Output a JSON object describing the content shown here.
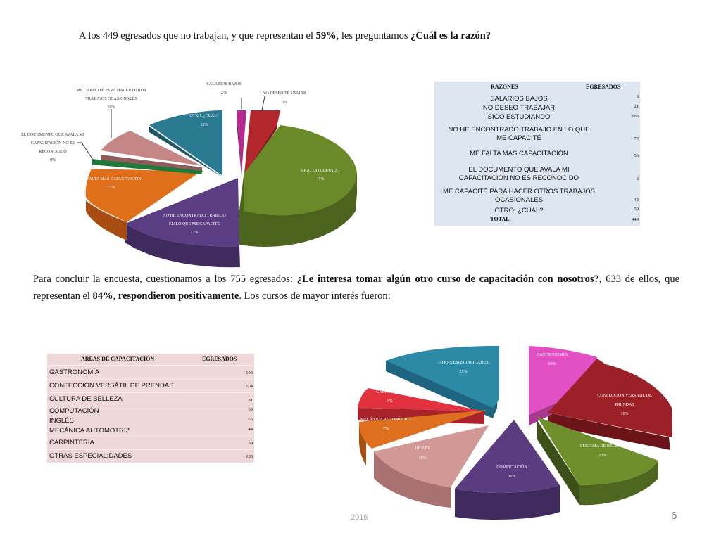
{
  "intro": {
    "part1": "A los 449 egresados que no trabajan, y que representan el ",
    "pct": "59%",
    "part2": ", les preguntamos ",
    "question": "¿Cuál es la razón?"
  },
  "chart1": {
    "labels": {
      "salarios_name": "SALARIOS BAJOS",
      "salarios_pct": "2%",
      "nodeseo_name": "NO DESEO TRABAJAR",
      "nodeseo_pct": "5%",
      "sigo_name": "SIGO ESTUDIANDO",
      "sigo_pct": "41%",
      "noenc_line1": "NO HE ENCONTRADO TRABAJO",
      "noenc_line2": "EN LO QUE ME CAPACITÉ",
      "noenc_pct": "17%",
      "falta_name": "FALTA MÁS CAPACITACIÓN",
      "falta_pct": "12%",
      "doc_line1": "EL DOCUMENTO QUE AVALA MI",
      "doc_line2": "CAPACITACIÓN NO ES",
      "doc_line3": "RECONOCIDO",
      "doc_pct": "0%",
      "mecap_line1": "ME CAPACITÉ PARA HACER OTROS",
      "mecap_line2": "TRABAJOS OCASIONALES",
      "mecap_pct": "10%",
      "otro_name": "OTRO: ¿CUÁL?",
      "otro_pct": "13%"
    }
  },
  "table1": {
    "header_reason": "RAZONES",
    "header_count": "EGRESADOS",
    "rows": [
      {
        "line1": "SALARIOS BAJOS",
        "line2": "",
        "value": "8"
      },
      {
        "line1": "NO DESEO TRABAJAR",
        "line2": "",
        "value": "21"
      },
      {
        "line1": "SIGO ESTUDIANDO",
        "line2": "",
        "value": "186"
      },
      {
        "line1": "NO HE ENCONTRADO TRABAJO EN LO QUE",
        "line2": "ME CAPACITÉ",
        "value": "74"
      },
      {
        "line1": "ME FALTA MÁS CAPACITACIÓN",
        "line2": "",
        "value": "56"
      },
      {
        "line1": "EL DOCUMENTO QUE AVALA MI",
        "line2": "CAPACITACIÓN NO ES RECONOCIDO",
        "value": "2"
      },
      {
        "line1": "ME CAPACITÉ PARA HACER OTROS TRABAJOS",
        "line2": "OCASIONALES",
        "value": "43"
      },
      {
        "line1": "OTRO: ¿CUÁL?",
        "line2": "",
        "value": "59"
      },
      {
        "line1": "TOTAL",
        "line2": "",
        "value": "449"
      }
    ]
  },
  "conclusion": {
    "part1": "Para concluir la encuesta, cuestionamos a los 755 egresados: ",
    "question": "¿Le interesa tomar algún otro curso de capacitación con nosotros?",
    "part2": ", 633 de ellos, que representan el ",
    "pct": "84%",
    "part3": ", ",
    "positive": "respondieron positivamente",
    "part4": ". Los cursos de mayor interés fueron:"
  },
  "table2": {
    "header_area": "ÁREAS DE CAPACITACIÓN",
    "header_count": "EGRESADOS",
    "rows": [
      {
        "label": "GASTRONOMÍA",
        "value": "103"
      },
      {
        "label": "CONFECCIÓN VERSÁTIL DE PRENDAS",
        "value": "104"
      },
      {
        "label": "CULTURA DE BELLEZA",
        "value": "81"
      },
      {
        "label": "COMPUTACIÓN",
        "value": "69"
      },
      {
        "label": "INGLÉS",
        "value": "63"
      },
      {
        "label": "MECÁNICA AUTOMOTRIZ",
        "value": "44"
      },
      {
        "label": "CARPINTERÍA",
        "value": "39"
      },
      {
        "label": "OTRAS ESPECIALIDADES",
        "value": "130"
      }
    ]
  },
  "chart2": {
    "labels": {
      "gastro_name": "GASTRONOMÍA",
      "gastro_pct": "16%",
      "confec_line1": "CONFECCIÓN VERSATIL DE",
      "confec_line2": "PRENDAS",
      "confec_pct": "16%",
      "cultura_name": "CULTORA DE BELLEZA",
      "cultura_pct": "13%",
      "comp_name": "COMPUTACIÓN",
      "comp_pct": "11%",
      "ingles_name": "INGLÉS",
      "ingles_pct": "10%",
      "mecanica_name": "MECÁNICA AUTOMOTRIZ",
      "mecanica_pct": "7%",
      "carp_name": "CARPINTERÍA",
      "carp_pct": "6%",
      "otras_name": "OTRAS ESPECIALIDADES",
      "otras_pct": "21%"
    }
  },
  "chart_data": [
    {
      "type": "pie",
      "categories": [
        "SALARIOS BAJOS",
        "NO DESEO TRABAJAR",
        "SIGO ESTUDIANDO",
        "NO HE ENCONTRADO TRABAJO EN LO QUE ME CAPACITÉ",
        "FALTA MÁS CAPACITACIÓN",
        "EL DOCUMENTO QUE AVALA MI CAPACITACIÓN NO ES RECONOCIDO",
        "ME CAPACITÉ PARA HACER OTROS TRABAJOS OCASIONALES",
        "OTRO: ¿CUÁL?"
      ],
      "values": [
        2,
        5,
        41,
        17,
        12,
        0,
        10,
        13
      ],
      "colors": [
        "#b42a8e",
        "#b3262b",
        "#6a8a2a",
        "#5a3d82",
        "#e06f1c",
        "#1f7a3a",
        "#c48786",
        "#2a7a92"
      ]
    },
    {
      "type": "pie",
      "categories": [
        "GASTRONOMÍA",
        "CONFECCIÓN VERSATIL DE PRENDAS",
        "CULTORA DE BELLEZA",
        "COMPUTACIÓN",
        "INGLÉS",
        "MECÁNICA AUTOMOTRIZ",
        "CARPINTERÍA",
        "OTRAS ESPECIALIDADES"
      ],
      "values": [
        16,
        16,
        13,
        11,
        10,
        7,
        6,
        21
      ],
      "colors": [
        "#e34fc4",
        "#9b2027",
        "#6f8f2d",
        "#5b3c80",
        "#d29896",
        "#dd6f1e",
        "#e2323f",
        "#2d8aa6"
      ]
    }
  ],
  "footer": {
    "year": "2016",
    "page": "6"
  }
}
